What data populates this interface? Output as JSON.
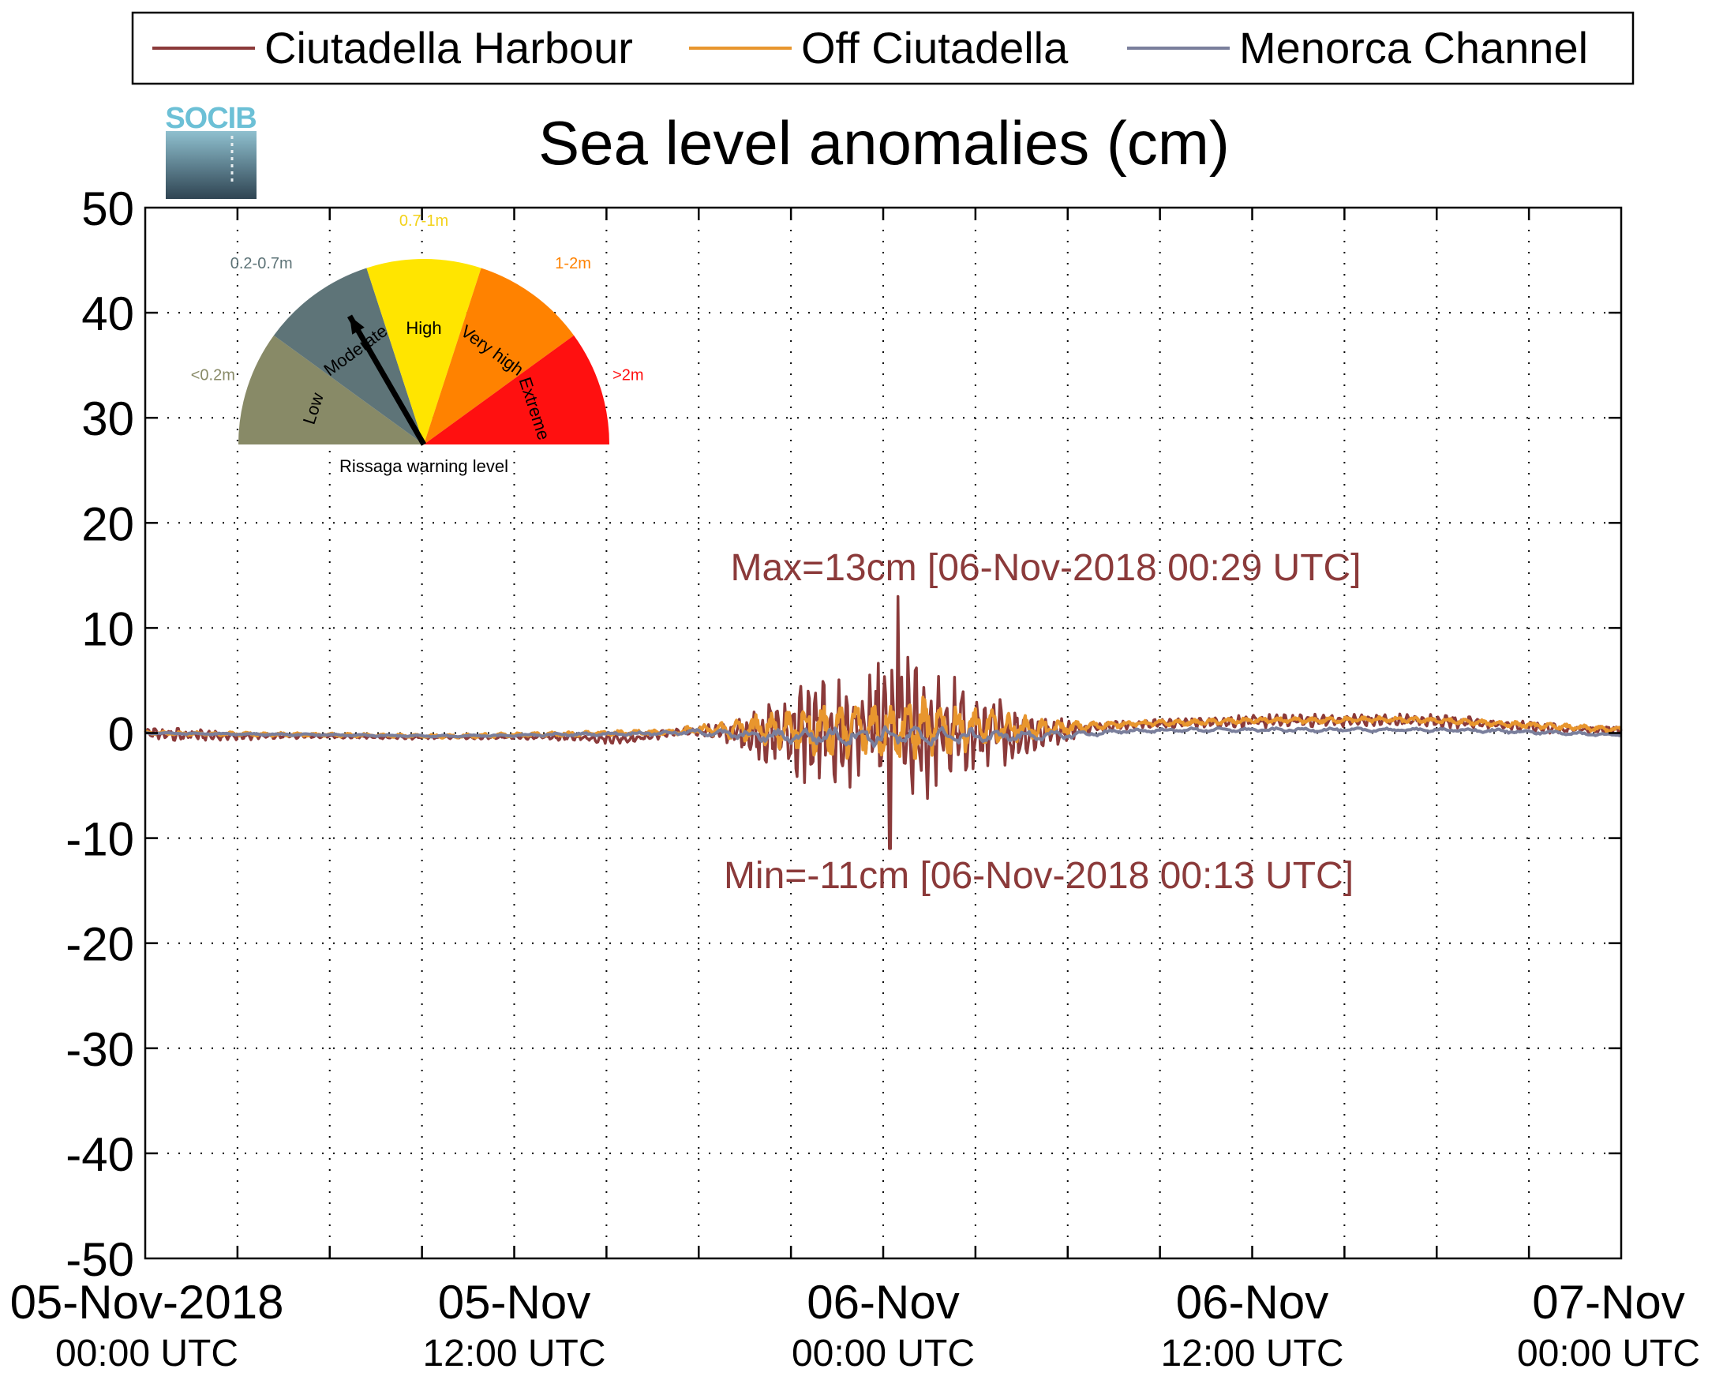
{
  "chart_data": {
    "type": "line",
    "title": "Sea level anomalies (cm)",
    "xlabel": "",
    "ylabel": "",
    "ylim": [
      -50,
      50
    ],
    "yticks": [
      50,
      40,
      30,
      20,
      10,
      0,
      -10,
      -20,
      -30,
      -40,
      -50
    ],
    "xlim": [
      "05-Nov-2018 00:00 UTC",
      "07-Nov-2018 00:00 UTC"
    ],
    "xticks": [
      {
        "hour": 0,
        "date": "05-Nov-2018",
        "time": "00:00 UTC"
      },
      {
        "hour": 12,
        "date": "05-Nov",
        "time": "12:00 UTC"
      },
      {
        "hour": 24,
        "date": "06-Nov",
        "time": "00:00 UTC"
      },
      {
        "hour": 36,
        "date": "06-Nov",
        "time": "12:00 UTC"
      },
      {
        "hour": 48,
        "date": "07-Nov",
        "time": "00:00 UTC"
      }
    ],
    "minor_grid_hours": [
      3,
      6,
      9,
      15,
      18,
      21,
      27,
      30,
      33,
      39,
      42,
      45
    ],
    "grid": true,
    "legend_placement": "top",
    "series": [
      {
        "name": "Ciutadella Harbour",
        "color": "#8b3a3a",
        "x_hours": [
          0,
          1,
          2,
          3,
          4,
          6,
          8,
          10,
          12,
          14,
          15,
          16,
          17,
          18,
          19,
          20,
          21,
          22,
          23,
          24,
          24.2,
          24.5,
          25,
          26,
          27,
          28,
          29,
          30,
          31,
          32,
          34,
          36,
          38,
          40,
          42,
          44,
          46,
          48
        ],
        "amplitude": [
          0.6,
          0.8,
          0.6,
          0.4,
          0.3,
          0.2,
          0.2,
          0.2,
          0.2,
          0.4,
          0.6,
          0.6,
          0.4,
          0.5,
          1.2,
          3,
          5,
          6.5,
          7.5,
          8.5,
          11.5,
          8.5,
          7.5,
          6.5,
          5,
          3.5,
          2,
          1.2,
          0.6,
          0.5,
          0.6,
          0.7,
          0.7,
          0.7,
          0.7,
          0.6,
          0.5,
          0.5
        ],
        "baseline": [
          0,
          -0.2,
          -0.2,
          -0.3,
          -0.3,
          -0.3,
          -0.4,
          -0.4,
          -0.4,
          -0.4,
          -0.5,
          -0.5,
          0,
          0.2,
          0,
          0,
          0,
          0,
          0,
          0,
          0,
          0,
          0,
          0,
          0,
          0,
          0,
          0.3,
          0.6,
          0.8,
          1,
          1.1,
          1.2,
          1.2,
          1.2,
          0.8,
          0.4,
          0.3
        ]
      },
      {
        "name": "Off Ciutadella",
        "color": "#e8962e",
        "x_hours": [
          0,
          10,
          17,
          18,
          19,
          20,
          21,
          22,
          23,
          24,
          25,
          26,
          27,
          28,
          29,
          30,
          31,
          32,
          34,
          36,
          38,
          40,
          42,
          44,
          46,
          48
        ],
        "amplitude": [
          0.2,
          0.2,
          0.3,
          0.5,
          1,
          1.8,
          2.4,
          2.8,
          3,
          3.2,
          3.4,
          3,
          2.2,
          1.6,
          1.1,
          0.7,
          0.4,
          0.3,
          0.3,
          0.3,
          0.3,
          0.3,
          0.3,
          0.3,
          0.3,
          0.3
        ],
        "baseline": [
          0,
          -0.3,
          0.1,
          0.3,
          0.3,
          0.4,
          0.4,
          0.4,
          0.4,
          0.5,
          0.5,
          0.5,
          0.5,
          0.5,
          0.4,
          0.5,
          0.7,
          0.9,
          1,
          1.2,
          1.2,
          1.3,
          1.2,
          0.9,
          0.6,
          0.3
        ]
      },
      {
        "name": "Menorca Channel",
        "color": "#7a7f9c",
        "x_hours": [
          0,
          10,
          17,
          18,
          20,
          22,
          24,
          26,
          28,
          30,
          31,
          32,
          34,
          36,
          38,
          40,
          42,
          44,
          46,
          48
        ],
        "amplitude": [
          0.1,
          0.1,
          0.2,
          0.3,
          0.6,
          0.9,
          1.1,
          0.9,
          0.6,
          0.4,
          0.3,
          0.2,
          0.2,
          0.2,
          0.2,
          0.2,
          0.2,
          0.2,
          0.2,
          0.1
        ],
        "baseline": [
          0,
          -0.3,
          0,
          0.1,
          -0.3,
          -0.3,
          -0.3,
          -0.3,
          -0.3,
          -0.2,
          0,
          0.2,
          0.3,
          0.3,
          0.3,
          0.3,
          0.3,
          0.2,
          0,
          -0.2
        ]
      }
    ],
    "annotations": [
      {
        "id": "max",
        "text": "Max=13cm [06-Nov-2018 00:29 UTC]",
        "hour": 24.48,
        "value": 13,
        "color": "#8b3a3a"
      },
      {
        "id": "min",
        "text": "Min=-11cm [06-Nov-2018 00:13 UTC]",
        "hour": 24.22,
        "value": -11,
        "color": "#8b3a3a"
      }
    ],
    "inset_gauge": {
      "title": "Rissaga warning level",
      "needle_level": "Moderate",
      "segments": [
        {
          "label": "Low",
          "range": "<0.2m",
          "color": "#888a67",
          "range_color": "#888a67"
        },
        {
          "label": "Moderate",
          "range": "0.2-0.7m",
          "color": "#5e7478",
          "range_color": "#5e7478"
        },
        {
          "label": "High",
          "range": "0.7-1m",
          "color": "#ffe500",
          "range_color": "#f3d21a"
        },
        {
          "label": "Very high",
          "range": "1-2m",
          "color": "#ff8200",
          "range_color": "#ff8200"
        },
        {
          "label": "Extreme",
          "range": ">2m",
          "color": "#ff1010",
          "range_color": "#ff1010"
        }
      ]
    }
  },
  "logo": {
    "text": "SOCIB"
  }
}
